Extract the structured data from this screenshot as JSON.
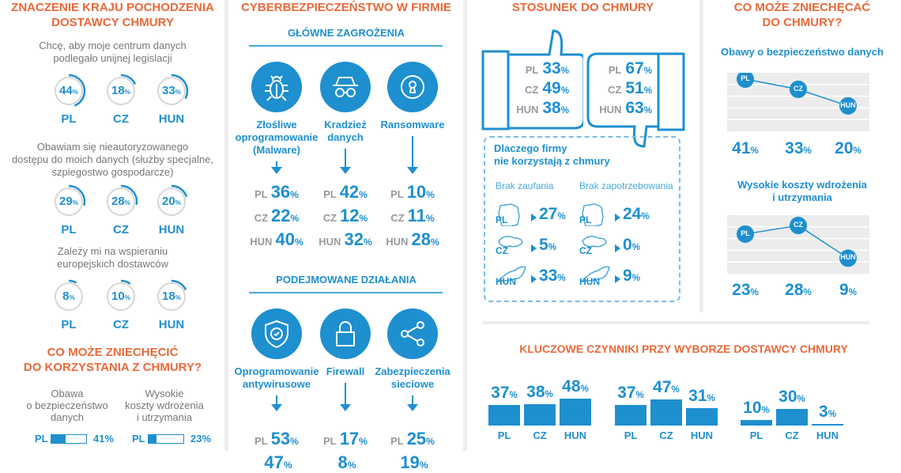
{
  "colors": {
    "blue": "#1e8fcf",
    "orange": "#e8693a",
    "grey": "#8a8a8a",
    "ring_grey": "#d6d6d6",
    "chart_bg": "#ececec"
  },
  "pct": "%",
  "origin": {
    "title_lines": [
      "ZNACZENIE KRAJU POCHODZENIA",
      "DOSTAWCY CHMURY"
    ],
    "questions": [
      {
        "text_lines": [
          "Chcę, aby moje centrum danych",
          "podlegało unijnej legislacji"
        ],
        "values": [
          {
            "country": "PL",
            "value": 44
          },
          {
            "country": "CZ",
            "value": 18
          },
          {
            "country": "HUN",
            "value": 33
          }
        ]
      },
      {
        "text_lines": [
          "Obawiam się nieautoryzowanego",
          "dostępu do moich danych (służby specjalne,",
          "szpiegostwo gospodarcze)"
        ],
        "values": [
          {
            "country": "PL",
            "value": 29
          },
          {
            "country": "CZ",
            "value": 28
          },
          {
            "country": "HUN",
            "value": 20
          }
        ]
      },
      {
        "text_lines": [
          "Zależy mi na wspieraniu",
          "europejskich dostawców"
        ],
        "values": [
          {
            "country": "PL",
            "value": 8
          },
          {
            "country": "CZ",
            "value": 10
          },
          {
            "country": "HUN",
            "value": 18
          }
        ]
      }
    ]
  },
  "deterrents_left": {
    "title_lines": [
      "CO MOŻE ZNIECHĘCIĆ",
      "DO KORZYSTANIA Z CHMURY?"
    ],
    "items": [
      {
        "label_lines": [
          "Obawa",
          "o bezpieczeństwo",
          "danych"
        ],
        "country": "PL",
        "value": 41,
        "text": "41%"
      },
      {
        "label_lines": [
          "Wysokie",
          "koszty wdrożenia",
          "i utrzymania"
        ],
        "country": "PL",
        "value": 23,
        "text": "23%"
      }
    ]
  },
  "cyber": {
    "title": "CYBERBEZPIECZEŃSTWO W FIRMIE",
    "sections": [
      {
        "heading": "GŁÓWNE ZAGROŻENIA",
        "items": [
          {
            "icon": "bug-icon",
            "label_lines": [
              "Złośliwe",
              "oprogramowanie",
              "(Malware)"
            ],
            "values": [
              {
                "country": "PL",
                "value": "36"
              },
              {
                "country": "CZ",
                "value": "22"
              },
              {
                "country": "HUN",
                "value": "40"
              }
            ]
          },
          {
            "icon": "spy-icon",
            "label_lines": [
              "Kradzież",
              "danych"
            ],
            "values": [
              {
                "country": "PL",
                "value": "42"
              },
              {
                "country": "CZ",
                "value": "12"
              },
              {
                "country": "HUN",
                "value": "32"
              }
            ]
          },
          {
            "icon": "keyhole-icon",
            "label_lines": [
              "Ransomware"
            ],
            "values": [
              {
                "country": "PL",
                "value": "10"
              },
              {
                "country": "CZ",
                "value": "11"
              },
              {
                "country": "HUN",
                "value": "28"
              }
            ]
          }
        ]
      },
      {
        "heading": "PODEJMOWANE DZIAŁANIA",
        "items": [
          {
            "icon": "shield-check-icon",
            "label_lines": [
              "Oprogramowanie",
              "antywirusowe"
            ],
            "values": [
              {
                "country": "PL",
                "value": "53"
              },
              {
                "country": "",
                "value": "47"
              }
            ]
          },
          {
            "icon": "lock-icon",
            "label_lines": [
              "Firewall"
            ],
            "values": [
              {
                "country": "PL",
                "value": "17"
              },
              {
                "country": "",
                "value": "8"
              }
            ]
          },
          {
            "icon": "share-icon",
            "label_lines": [
              "Zabezpieczenia",
              "sieciowe"
            ],
            "values": [
              {
                "country": "PL",
                "value": "25"
              },
              {
                "country": "",
                "value": "19"
              }
            ]
          }
        ]
      }
    ]
  },
  "attitude": {
    "title": "STOSUNEK DO CHMURY",
    "positive": [
      {
        "country": "PL",
        "value": "33"
      },
      {
        "country": "CZ",
        "value": "49"
      },
      {
        "country": "HUN",
        "value": "38"
      }
    ],
    "negative": [
      {
        "country": "PL",
        "value": "67"
      },
      {
        "country": "CZ",
        "value": "51"
      },
      {
        "country": "HUN",
        "value": "63"
      }
    ],
    "why": {
      "title_lines": [
        "Dlaczego firmy",
        "nie korzystają z chmury"
      ],
      "columns": [
        {
          "label": "Brak zaufania",
          "rows": [
            {
              "country": "PL",
              "value": "27"
            },
            {
              "country": "CZ",
              "value": "5"
            },
            {
              "country": "HUN",
              "value": "33"
            }
          ]
        },
        {
          "label": "Brak zapotrzebowania",
          "rows": [
            {
              "country": "PL",
              "value": "24"
            },
            {
              "country": "CZ",
              "value": "0"
            },
            {
              "country": "HUN",
              "value": "9"
            }
          ]
        }
      ]
    }
  },
  "deterrents_right": {
    "title_lines": [
      "CO MOŻE ZNIECHĘCAĆ",
      "DO CHMURY?"
    ],
    "charts": [
      {
        "title_lines": [
          "Obawy o bezpieczeństwo danych"
        ],
        "points": [
          {
            "country": "PL",
            "value": 41
          },
          {
            "country": "CZ",
            "value": 33
          },
          {
            "country": "HUN",
            "value": 20
          }
        ]
      },
      {
        "title_lines": [
          "Wysokie koszty wdrożenia",
          "i utrzymania"
        ],
        "points": [
          {
            "country": "PL",
            "value": 23
          },
          {
            "country": "CZ",
            "value": 28
          },
          {
            "country": "HUN",
            "value": 9
          }
        ]
      }
    ]
  },
  "key_factors": {
    "title": "KLUCZOWE CZYNNIKI PRZY WYBORZE DOSTAWCY CHMURY",
    "groups": [
      {
        "bars": [
          {
            "country": "PL",
            "value": 37
          },
          {
            "country": "CZ",
            "value": 38
          },
          {
            "country": "HUN",
            "value": 48
          }
        ]
      },
      {
        "bars": [
          {
            "country": "PL",
            "value": 37
          },
          {
            "country": "CZ",
            "value": 47
          },
          {
            "country": "HUN",
            "value": 31
          }
        ]
      },
      {
        "bars": [
          {
            "country": "PL",
            "value": 10
          },
          {
            "country": "CZ",
            "value": 30
          },
          {
            "country": "HUN",
            "value": 3
          }
        ]
      }
    ]
  }
}
